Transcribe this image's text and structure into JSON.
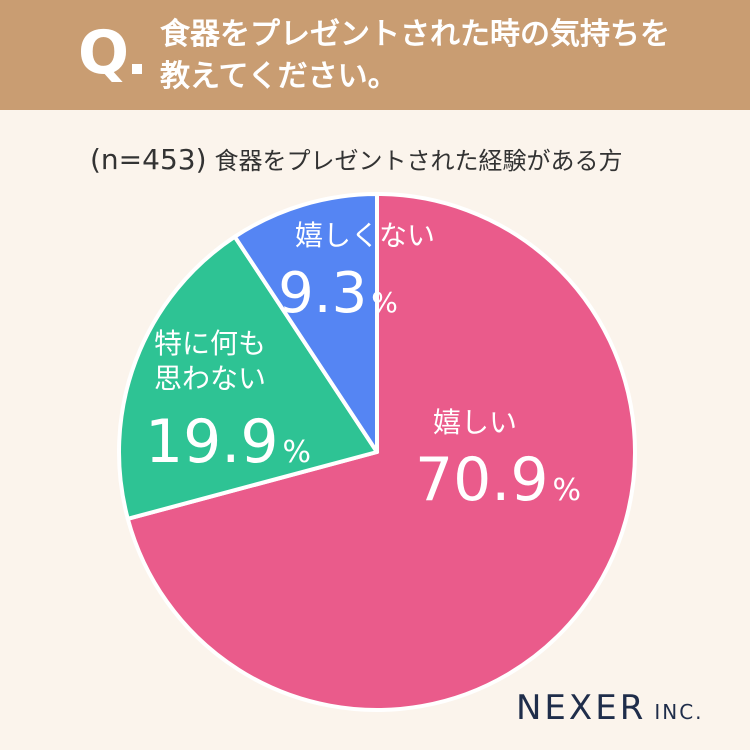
{
  "header": {
    "q_mark": "Q",
    "question_line1": "食器をプレゼントされた時の気持ちを",
    "question_line2": "教えてください。"
  },
  "subtitle": {
    "n": "(n=453)",
    "label": "食器をプレゼントされた経験がある方"
  },
  "chart_data": {
    "type": "pie",
    "slices": [
      {
        "label": "嬉しい",
        "value": 70.9,
        "value_text": "70.9",
        "color": "#ea5b8b"
      },
      {
        "label": "特に何も思わない",
        "value": 19.9,
        "value_text": "19.9",
        "color": "#2ec394"
      },
      {
        "label": "嬉しくない",
        "value": 9.3,
        "value_text": "9.3",
        "color": "#5585f3"
      }
    ],
    "unit": "%",
    "start": "12 o'clock",
    "direction": "clockwise"
  },
  "logo": {
    "main": "NEXER",
    "suffix": "INC."
  },
  "colors": {
    "header_bg": "#c99d72",
    "page_bg": "#fbf4ec"
  }
}
